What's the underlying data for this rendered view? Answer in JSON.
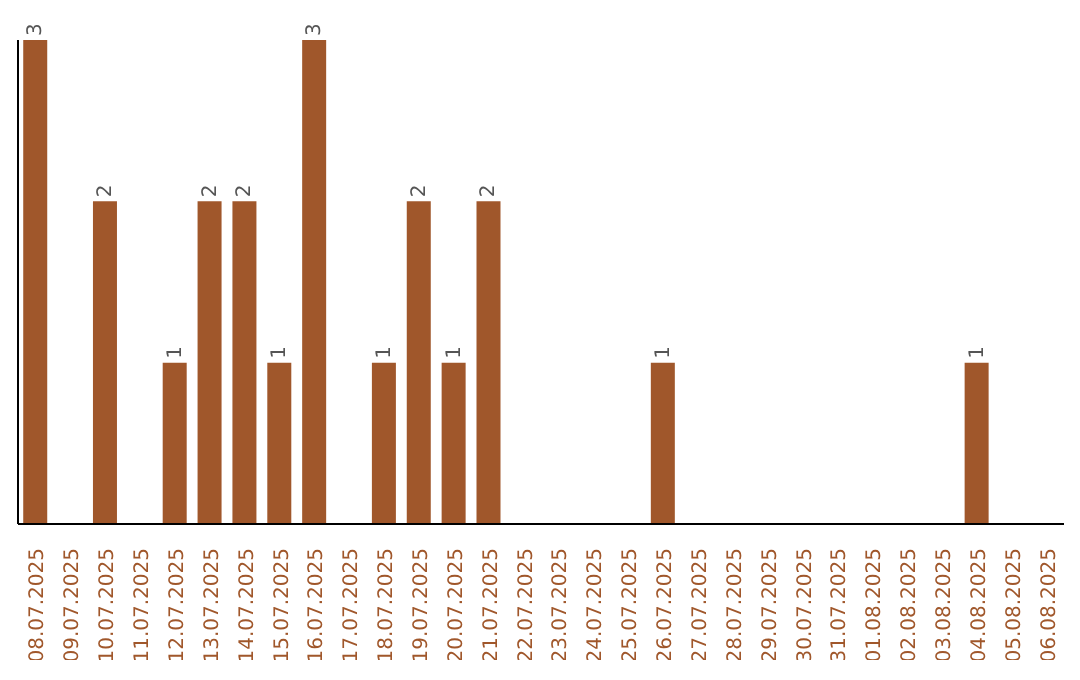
{
  "chart_data": {
    "type": "bar",
    "categories": [
      "08.07.2025",
      "09.07.2025",
      "10.07.2025",
      "11.07.2025",
      "12.07.2025",
      "13.07.2025",
      "14.07.2025",
      "15.07.2025",
      "16.07.2025",
      "17.07.2025",
      "18.07.2025",
      "19.07.2025",
      "20.07.2025",
      "21.07.2025",
      "22.07.2025",
      "23.07.2025",
      "24.07.2025",
      "25.07.2025",
      "26.07.2025",
      "27.07.2025",
      "28.07.2025",
      "29.07.2025",
      "30.07.2025",
      "31.07.2025",
      "01.08.2025",
      "02.08.2025",
      "03.08.2025",
      "04.08.2025",
      "05.08.2025",
      "06.08.2025"
    ],
    "values": [
      3,
      0,
      2,
      0,
      1,
      2,
      2,
      1,
      3,
      0,
      1,
      2,
      1,
      2,
      0,
      0,
      0,
      0,
      1,
      0,
      0,
      0,
      0,
      0,
      0,
      0,
      0,
      1,
      0,
      0
    ],
    "value_labels": [
      "3",
      null,
      "2",
      null,
      "1",
      "2",
      "2",
      "1",
      "3",
      null,
      "1",
      "2",
      "1",
      "2",
      null,
      null,
      null,
      null,
      "1",
      null,
      null,
      null,
      null,
      null,
      null,
      null,
      null,
      "1",
      null,
      null
    ],
    "color": "#a0572b"
  }
}
